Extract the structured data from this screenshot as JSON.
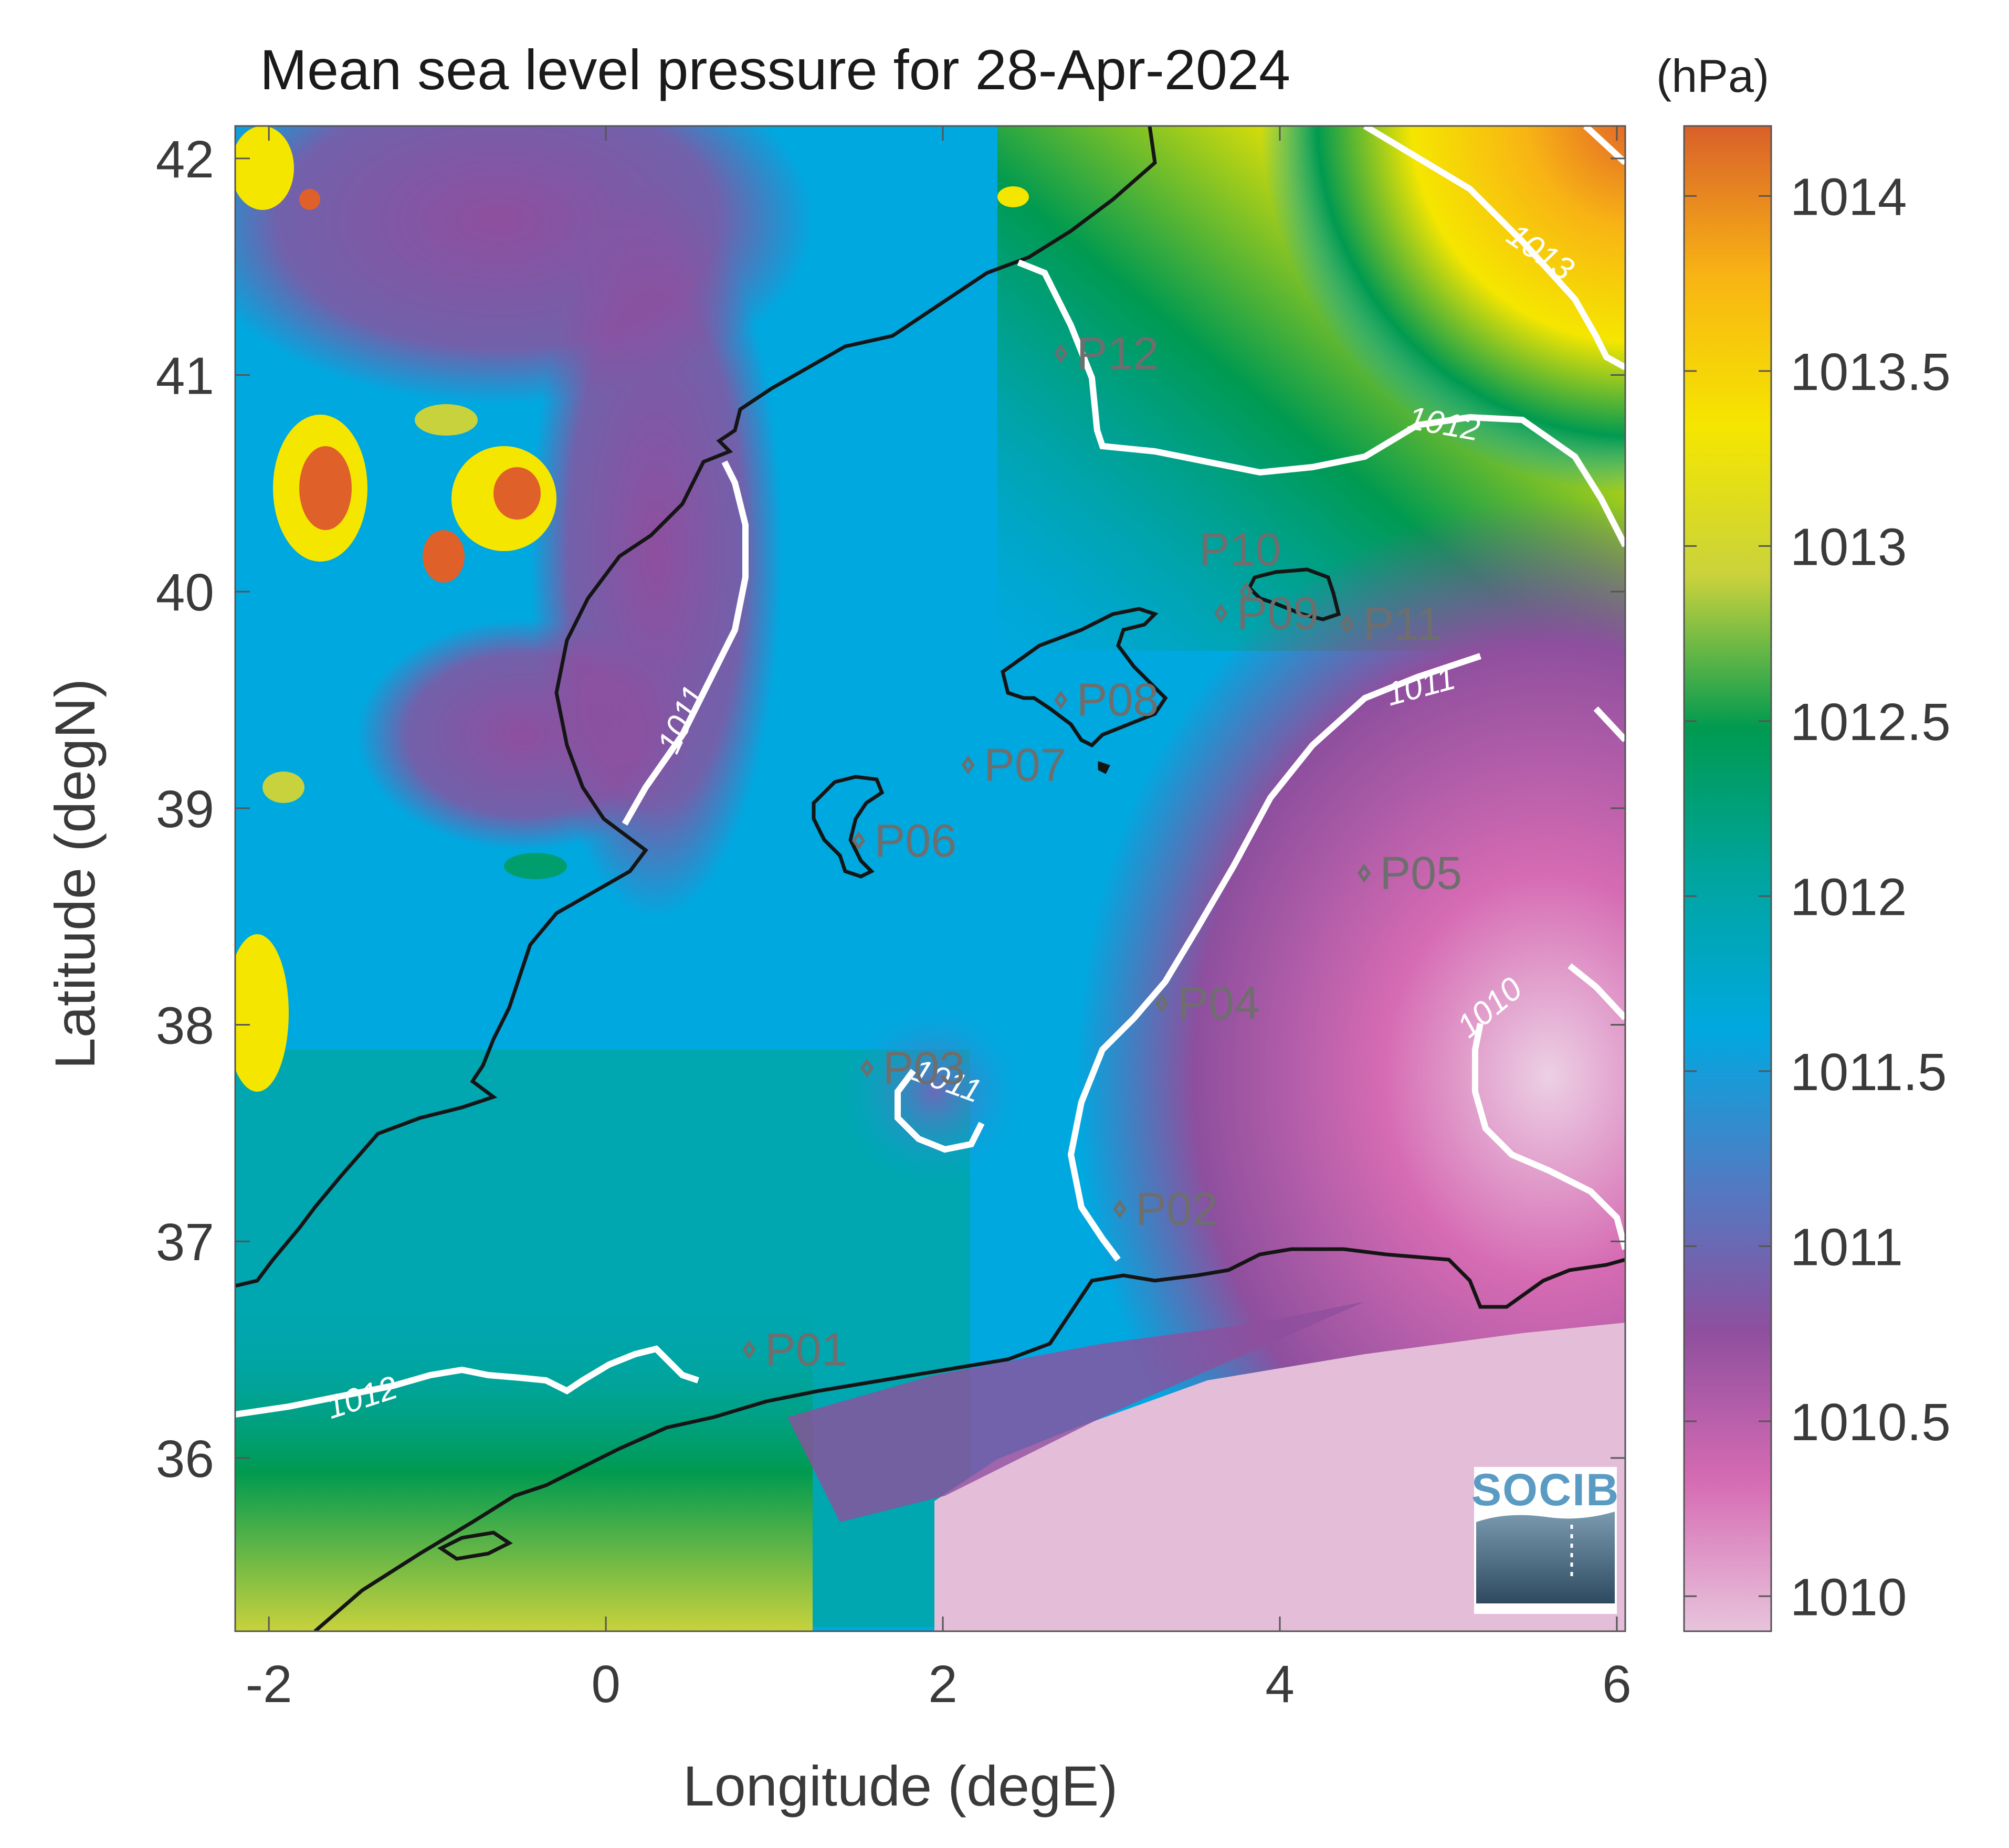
{
  "title": "Mean sea level pressure for 28-Apr-2024",
  "unit": "(hPa)",
  "x_axis": {
    "label": "Longitude (degE)",
    "range": [
      -2.2,
      6.05
    ],
    "ticks": [
      "-2",
      "0",
      "2",
      "4",
      "6"
    ]
  },
  "y_axis": {
    "label": "Latitude (degN)",
    "range": [
      35.2,
      42.15
    ],
    "ticks": [
      "36",
      "37",
      "38",
      "39",
      "40",
      "41",
      "42"
    ]
  },
  "colorbar": {
    "range": [
      1009.9,
      1014.2
    ],
    "ticks": [
      "1010",
      "1010.5",
      "1011",
      "1011.5",
      "1012",
      "1012.5",
      "1013",
      "1013.5",
      "1014"
    ],
    "colors": [
      "#e8c4dc",
      "#d66bb3",
      "#8e4f9e",
      "#4f7cc4",
      "#00a8e0",
      "#00a5a0",
      "#009a50",
      "#c8d23c",
      "#f5e600",
      "#f8b414",
      "#d9602a"
    ]
  },
  "contours": [
    {
      "label": "1010",
      "value": 1010
    },
    {
      "label": "1011",
      "value": 1011
    },
    {
      "label": "1012",
      "value": 1012
    },
    {
      "label": "1013",
      "value": 1013
    }
  ],
  "stations": [
    {
      "id": "P01",
      "label": "P01",
      "lon": 0.85,
      "lat": 36.5
    },
    {
      "id": "P02",
      "label": "P02",
      "lon": 3.05,
      "lat": 37.15
    },
    {
      "id": "P03",
      "label": "P03",
      "lon": 1.55,
      "lat": 37.8
    },
    {
      "id": "P04",
      "label": "P04",
      "lon": 3.3,
      "lat": 38.1
    },
    {
      "id": "P05",
      "label": "P05",
      "lon": 4.5,
      "lat": 38.7
    },
    {
      "id": "P06",
      "label": "P06",
      "lon": 1.5,
      "lat": 38.85
    },
    {
      "id": "P07",
      "label": "P07",
      "lon": 2.15,
      "lat": 39.2
    },
    {
      "id": "P08",
      "label": "P08",
      "lon": 2.7,
      "lat": 39.5
    },
    {
      "id": "P09",
      "label": "P09",
      "lon": 3.65,
      "lat": 39.9
    },
    {
      "id": "P10",
      "label": "P10",
      "lon": 3.8,
      "lat": 40.0
    },
    {
      "id": "P11",
      "label": "P11",
      "lon": 4.4,
      "lat": 39.85
    },
    {
      "id": "P12",
      "label": "P12",
      "lon": 2.7,
      "lat": 41.1
    }
  ],
  "logo": {
    "text": "SOCIB"
  }
}
